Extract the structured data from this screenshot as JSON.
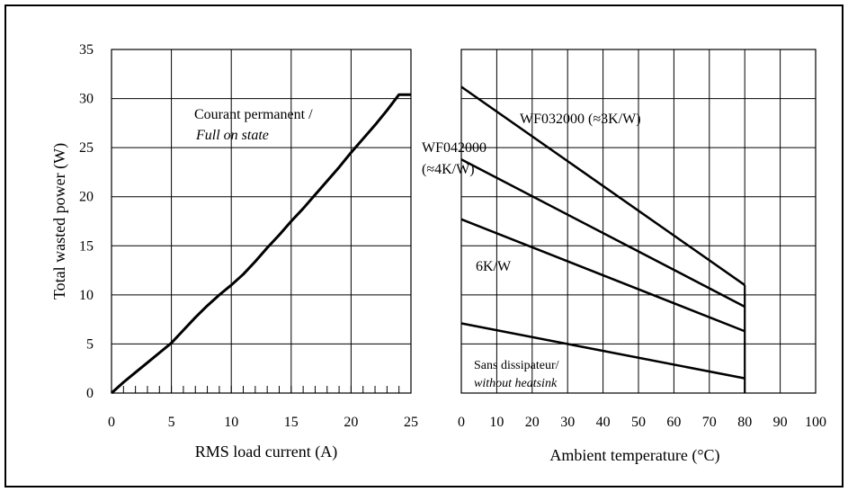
{
  "chart_data": [
    {
      "type": "line",
      "title": "",
      "xlabel": "RMS load current (A)",
      "ylabel": "Total wasted power (W)",
      "xlim": [
        0,
        25
      ],
      "ylim": [
        0,
        35
      ],
      "x_ticks": [
        "0",
        "5",
        "10",
        "15",
        "20",
        "25"
      ],
      "y_ticks": [
        "0",
        "5",
        "10",
        "15",
        "20",
        "25",
        "30",
        "35"
      ],
      "grid": true,
      "series": [
        {
          "x": [
            0,
            1,
            2,
            3,
            4,
            5,
            6,
            7,
            8,
            9,
            10,
            11,
            12,
            13,
            14,
            15,
            16,
            17,
            18,
            19,
            20,
            21,
            22,
            23,
            24,
            25
          ],
          "y": [
            0,
            1.1,
            2.1,
            3.1,
            4.1,
            5.1,
            6.4,
            7.7,
            8.9,
            10.0,
            11.0,
            12.1,
            13.4,
            14.8,
            16.1,
            17.5,
            18.8,
            20.2,
            21.6,
            23.0,
            24.5,
            25.9,
            27.3,
            28.8,
            30.4,
            30.4
          ]
        }
      ],
      "annotations": [
        "Courant permanent /",
        "Full on state"
      ]
    },
    {
      "type": "line",
      "title": "",
      "xlabel": "Ambient temperature (°C)",
      "ylabel": "",
      "xlim": [
        0,
        100
      ],
      "ylim": [
        0,
        35
      ],
      "x_ticks": [
        "0",
        "10",
        "20",
        "30",
        "40",
        "50",
        "60",
        "70",
        "80",
        "90",
        "100"
      ],
      "grid": true,
      "series": [
        {
          "name": "WF032000 (≈3K/W)",
          "x": [
            0,
            80
          ],
          "y": [
            31.2,
            11.0
          ]
        },
        {
          "name": "WF042000 (≈4K/W)",
          "x": [
            0,
            80
          ],
          "y": [
            23.8,
            8.8
          ]
        },
        {
          "name": "6K/W",
          "x": [
            0,
            80
          ],
          "y": [
            17.7,
            6.3
          ]
        },
        {
          "name": "Sans dissipateur/ without heatsink",
          "x": [
            0,
            80
          ],
          "y": [
            7.1,
            1.5
          ]
        }
      ],
      "annotations": [
        "WF032000 (≈3K/W)",
        "WF042000",
        "(≈4K/W)",
        "6K/W",
        "Sans dissipateur/",
        "without heatsink"
      ]
    }
  ]
}
